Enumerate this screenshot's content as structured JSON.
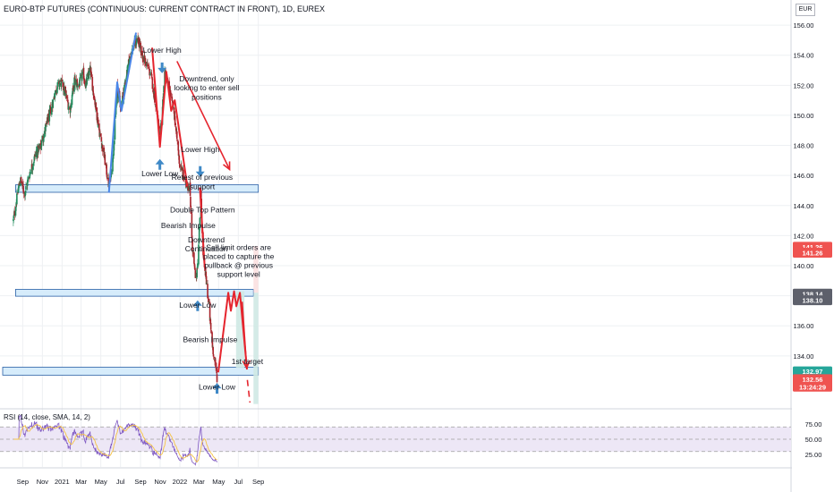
{
  "header": {
    "title": "EURO-BTP FUTURES (CONTINUOUS: CURRENT CONTRACT IN FRONT), 1D, EUREX",
    "currency": "EUR"
  },
  "colors": {
    "up": "#26a69a",
    "down": "#ef5350",
    "candle_up": "#1f8a5b",
    "candle_down": "#a8232b",
    "blue_line": "#4a86e8",
    "red_line": "#e5252e",
    "zone_fill": "#d6ecfb",
    "zone_stroke": "#2a5fa6",
    "rsi": "#7e57c2",
    "rsi_ma": "#f5c343",
    "arrow_blue": "#3f89c7"
  },
  "price_axis": {
    "ticks": [
      "156.00",
      "154.00",
      "152.00",
      "150.00",
      "148.00",
      "146.00",
      "144.00",
      "142.00",
      "140.00",
      "138.00",
      "136.00",
      "134.00"
    ],
    "tick_values": [
      156,
      154,
      152,
      150,
      148,
      146,
      144,
      142,
      140,
      138,
      136,
      134
    ],
    "ylim": [
      130.6,
      156.6
    ],
    "labels": [
      {
        "text": "141.26",
        "value": 141.26,
        "color": "#ef5350"
      },
      {
        "text": "141.26",
        "value": 140.86,
        "color": "#ef5350"
      },
      {
        "text": "138.14",
        "value": 138.14,
        "color": "#5d606b"
      },
      {
        "text": "138.10",
        "value": 137.7,
        "color": "#5d606b"
      },
      {
        "text": "132.97",
        "value": 132.97,
        "color": "#26a69a"
      },
      {
        "text": "132.56",
        "value": 132.45,
        "color": "#ef5350"
      },
      {
        "text": "13:24:29",
        "value": 131.95,
        "color": "#ef5350"
      }
    ]
  },
  "time_axis": {
    "labels": [
      "Sep",
      "Nov",
      "2021",
      "Mar",
      "May",
      "Jul",
      "Sep",
      "Nov",
      "2022",
      "Mar",
      "May",
      "Jul",
      "Sep"
    ],
    "dates": [
      "2020-09-01",
      "2020-11-01",
      "2021-01-01",
      "2021-03-01",
      "2021-05-01",
      "2021-07-01",
      "2021-09-01",
      "2021-11-01",
      "2022-01-01",
      "2022-03-01",
      "2022-05-01",
      "2022-07-01",
      "2022-09-01"
    ]
  },
  "annotations": [
    {
      "text": "Lower High",
      "date": "2021-11-07",
      "price": 154.15
    },
    {
      "text": "Downtrend, only",
      "date": "2022-03-25",
      "price": 152.25
    },
    {
      "text": "looking to enter sell",
      "date": "2022-03-25",
      "price": 151.65
    },
    {
      "text": "positions",
      "date": "2022-03-25",
      "price": 151.05
    },
    {
      "text": "Lower High",
      "date": "2022-03-05",
      "price": 147.55
    },
    {
      "text": "Lower Low",
      "date": "2021-10-31",
      "price": 145.95
    },
    {
      "text": "Retest of previous",
      "date": "2022-03-11",
      "price": 145.7
    },
    {
      "text": "support",
      "date": "2022-03-11",
      "price": 145.1
    },
    {
      "text": "Double Top Pattern",
      "date": "2022-03-12",
      "price": 143.55
    },
    {
      "text": "Bearish Impulse",
      "date": "2022-01-27",
      "price": 142.5
    },
    {
      "text": "Downtrend",
      "date": "2022-03-24",
      "price": 141.55
    },
    {
      "text": "Continuation",
      "date": "2022-03-24",
      "price": 140.95
    },
    {
      "text": "Sell limit orders are",
      "date": "2022-07-02",
      "price": 141.05
    },
    {
      "text": "placed to capture the",
      "date": "2022-07-02",
      "price": 140.45
    },
    {
      "text": "pullback @ previous",
      "date": "2022-07-02",
      "price": 139.85
    },
    {
      "text": "support level",
      "date": "2022-07-02",
      "price": 139.25
    },
    {
      "text": "Lower Low",
      "date": "2022-02-25",
      "price": 137.2
    },
    {
      "text": "Bearish Impulse",
      "date": "2022-04-05",
      "price": 134.9
    },
    {
      "text": "1st target",
      "date": "2022-07-29",
      "price": 133.45
    },
    {
      "text": "Lower Low",
      "date": "2022-04-26",
      "price": 131.75
    }
  ],
  "rsi": {
    "label": "RSI (14, close, SMA, 14, 2)",
    "ticks": [
      "75.00",
      "50.00",
      "25.00"
    ],
    "tick_values": [
      75,
      50,
      25
    ],
    "ylim": [
      5,
      95
    ],
    "upper": 70,
    "lower": 30
  },
  "chart_data": {
    "type": "candlestick",
    "title": "EURO-BTP FUTURES (CONTINUOUS: CURRENT CONTRACT IN FRONT), 1D, EUREX",
    "ylabel": "EUR",
    "ylim": [
      130.6,
      156.6
    ],
    "close_path": [
      [
        "2020-08-03",
        143.0
      ],
      [
        "2020-08-24",
        145.8
      ],
      [
        "2020-09-07",
        144.8
      ],
      [
        "2020-09-21",
        146.0
      ],
      [
        "2020-10-12",
        147.5
      ],
      [
        "2020-10-26",
        147.9
      ],
      [
        "2020-11-09",
        149.0
      ],
      [
        "2020-11-30",
        150.6
      ],
      [
        "2020-12-14",
        151.8
      ],
      [
        "2020-12-28",
        152.2
      ],
      [
        "2021-01-11",
        151.5
      ],
      [
        "2021-01-25",
        150.3
      ],
      [
        "2021-02-08",
        152.3
      ],
      [
        "2021-02-22",
        152.0
      ],
      [
        "2021-03-08",
        152.8
      ],
      [
        "2021-03-15",
        152.0
      ],
      [
        "2021-03-29",
        153.0
      ],
      [
        "2021-04-12",
        151.0
      ],
      [
        "2021-04-26",
        149.0
      ],
      [
        "2021-05-10",
        147.5
      ],
      [
        "2021-05-26",
        145.3
      ],
      [
        "2021-06-07",
        147.0
      ],
      [
        "2021-06-21",
        151.8
      ],
      [
        "2021-07-02",
        150.6
      ],
      [
        "2021-07-19",
        152.6
      ],
      [
        "2021-08-02",
        154.2
      ],
      [
        "2021-08-23",
        155.1
      ],
      [
        "2021-09-06",
        154.0
      ],
      [
        "2021-09-20",
        153.4
      ],
      [
        "2021-10-04",
        152.6
      ],
      [
        "2021-10-20",
        150.5
      ],
      [
        "2021-11-01",
        148.4
      ],
      [
        "2021-11-15",
        152.8
      ],
      [
        "2021-12-01",
        151.6
      ],
      [
        "2021-12-15",
        150.0
      ],
      [
        "2021-12-31",
        146.8
      ],
      [
        "2022-01-17",
        145.6
      ],
      [
        "2022-02-01",
        145.2
      ],
      [
        "2022-02-09",
        141.0
      ],
      [
        "2022-02-20",
        138.9
      ],
      [
        "2022-02-28",
        141.3
      ],
      [
        "2022-03-07",
        144.8
      ],
      [
        "2022-03-14",
        140.6
      ],
      [
        "2022-03-21",
        139.5
      ],
      [
        "2022-03-31",
        137.5
      ],
      [
        "2022-04-10",
        135.0
      ],
      [
        "2022-04-22",
        133.2
      ],
      [
        "2022-04-26",
        132.6
      ]
    ],
    "series": [
      {
        "name": "",
        "kind": "line",
        "color": "#4a86e8",
        "points": [
          [
            "2021-05-26",
            144.85
          ],
          [
            "2021-06-21",
            152.2
          ],
          [
            "2021-07-04",
            150.3
          ],
          [
            "2021-08-18",
            155.5
          ]
        ]
      },
      {
        "name": "",
        "kind": "line",
        "color": "#e5252e",
        "points": [
          [
            "2021-10-07",
            154.5
          ],
          [
            "2021-10-31",
            147.9
          ],
          [
            "2021-11-20",
            152.9
          ],
          [
            "2021-12-05",
            150.3
          ],
          [
            "2021-12-16",
            151.0
          ],
          [
            "2022-01-24",
            145.3
          ]
        ]
      },
      {
        "name": "",
        "kind": "line",
        "color": "#e5252e",
        "points": [
          [
            "2022-03-04",
            145.2
          ],
          [
            "2022-03-18",
            140.2
          ],
          [
            "2022-03-21",
            139.8
          ]
        ]
      },
      {
        "name": "",
        "kind": "line",
        "color": "#e5252e",
        "points": [
          [
            "2022-04-30",
            132.9
          ],
          [
            "2022-05-31",
            138.2
          ],
          [
            "2022-06-08",
            137.0
          ],
          [
            "2022-06-18",
            138.3
          ],
          [
            "2022-06-25",
            137.3
          ],
          [
            "2022-07-06",
            138.2
          ],
          [
            "2022-07-28",
            133.1
          ]
        ]
      }
    ],
    "arrows": [
      {
        "color": "#e5252e",
        "from": [
          "2021-12-23",
          153.6
        ],
        "to": [
          "2022-06-04",
          146.4
        ]
      },
      {
        "color": "#e5252e",
        "from": [
          "2022-07-13",
          137.6
        ],
        "to": [
          "2022-07-27",
          133.2
        ]
      }
    ],
    "dashed_segments": [
      {
        "color": "#e5252e",
        "from": [
          "2022-07-29",
          132.4
        ],
        "to": [
          "2022-08-06",
          130.9
        ]
      }
    ],
    "zones": [
      {
        "start": "2020-08-10",
        "end": "2022-09-01",
        "low": 144.88,
        "high": 145.38
      },
      {
        "start": "2020-08-10",
        "end": "2022-08-17",
        "low": 137.97,
        "high": 138.43
      },
      {
        "start": "2020-07-01",
        "end": "2022-09-01",
        "low": 132.72,
        "high": 133.25
      }
    ],
    "position_boxes": [
      {
        "start": "2022-06-24",
        "end": "2022-07-20",
        "top": 138.3,
        "bottom": 133.2,
        "color": "#cfe9e4"
      },
      {
        "start": "2022-08-17",
        "end": "2022-09-01",
        "top": 141.3,
        "bottom": 138.2,
        "color": "#fbe0e0"
      },
      {
        "start": "2022-08-17",
        "end": "2022-09-01",
        "top": 138.2,
        "bottom": 130.8,
        "color": "#cfe9e4"
      }
    ],
    "markers": [
      {
        "kind": "up",
        "date": "2021-10-31",
        "price": 146.8
      },
      {
        "kind": "down",
        "date": "2021-11-07",
        "price": 153.1
      },
      {
        "kind": "down",
        "date": "2022-03-05",
        "price": 146.2
      },
      {
        "kind": "up",
        "date": "2022-02-25",
        "price": 137.4
      },
      {
        "kind": "up",
        "date": "2022-04-26",
        "price": 131.9
      }
    ]
  }
}
